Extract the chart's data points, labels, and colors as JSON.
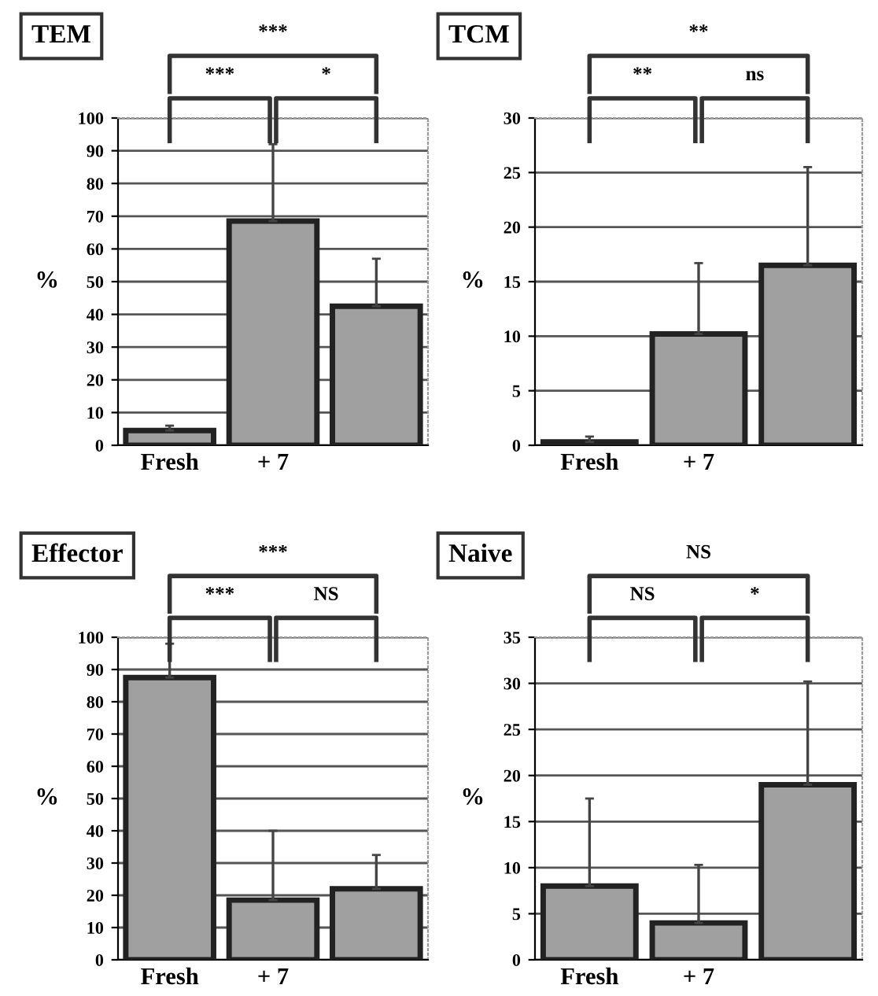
{
  "chart_data": [
    {
      "type": "bar",
      "title": "TEM",
      "ylabel": "%",
      "categories": [
        "Fresh",
        "+ 7",
        null
      ],
      "values": [
        4.5,
        68.5,
        42.5
      ],
      "errors": [
        [
          4.5,
          6
        ],
        [
          68.5,
          92
        ],
        [
          42.5,
          57
        ]
      ],
      "color": "#a0a0a0",
      "ylim": [
        0,
        100
      ],
      "yticks": [
        0,
        10,
        20,
        30,
        40,
        50,
        60,
        70,
        80,
        90,
        100
      ],
      "grid": "y",
      "annotations": [
        "***",
        "***",
        "*"
      ]
    },
    {
      "type": "bar",
      "title": "TCM",
      "ylabel": "%",
      "categories": [
        "Fresh",
        "+ 7",
        null
      ],
      "values": [
        0.3,
        10.2,
        16.5
      ],
      "errors": [
        [
          0.3,
          0.8
        ],
        [
          10.2,
          16.7
        ],
        [
          16.5,
          25.5
        ]
      ],
      "color": "#a0a0a0",
      "ylim": [
        0,
        30
      ],
      "yticks": [
        0,
        5,
        10,
        15,
        20,
        25,
        30
      ],
      "grid": "y",
      "annotations": [
        "**",
        "**",
        "ns"
      ]
    },
    {
      "type": "bar",
      "title": "Effector",
      "ylabel": "%",
      "categories": [
        "Fresh",
        "+ 7",
        null
      ],
      "values": [
        87.5,
        18.5,
        22
      ],
      "errors": [
        [
          87.5,
          98
        ],
        [
          18.5,
          40
        ],
        [
          22,
          32.5
        ]
      ],
      "color": "#a0a0a0",
      "ylim": [
        0,
        100
      ],
      "yticks": [
        0,
        10,
        20,
        30,
        40,
        50,
        60,
        70,
        80,
        90,
        100
      ],
      "grid": "y",
      "annotations": [
        "***",
        "***",
        "NS"
      ]
    },
    {
      "type": "bar",
      "title": "Naive",
      "ylabel": "%",
      "categories": [
        "Fresh",
        "+ 7",
        null
      ],
      "values": [
        8,
        4,
        19
      ],
      "errors": [
        [
          8,
          17.5
        ],
        [
          4,
          10.3
        ],
        [
          19,
          30.2
        ]
      ],
      "color": "#a0a0a0",
      "ylim": [
        0,
        35
      ],
      "yticks": [
        0,
        5,
        10,
        15,
        20,
        25,
        30,
        35
      ],
      "grid": "y",
      "annotations": [
        "NS",
        "NS",
        "*"
      ]
    }
  ]
}
